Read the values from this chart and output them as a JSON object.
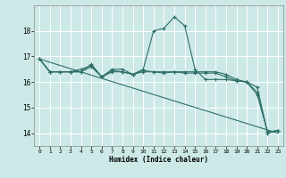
{
  "xlabel": "Humidex (Indice chaleur)",
  "ylabel": "",
  "x_ticks": [
    0,
    1,
    2,
    3,
    4,
    5,
    6,
    7,
    8,
    9,
    10,
    11,
    12,
    13,
    14,
    15,
    16,
    17,
    18,
    19,
    20,
    21,
    22,
    23
  ],
  "ylim": [
    13.5,
    19.0
  ],
  "yticks": [
    14,
    15,
    16,
    17,
    18
  ],
  "background_color": "#cce9e7",
  "grid_color": "#ffffff",
  "line_color": "#2d6e68",
  "line1": {
    "x": [
      0,
      1,
      2,
      3,
      4,
      5,
      6,
      7,
      8,
      9,
      10,
      11,
      12,
      13,
      14,
      15,
      16,
      17,
      18,
      19,
      20,
      21,
      22,
      23
    ],
    "y": [
      16.9,
      16.4,
      16.4,
      16.4,
      16.4,
      16.7,
      16.2,
      16.5,
      16.5,
      16.3,
      16.5,
      18.0,
      18.1,
      18.55,
      18.2,
      16.5,
      16.1,
      16.1,
      16.1,
      16.05,
      16.0,
      15.8,
      14.0,
      14.1
    ]
  },
  "line2": {
    "x": [
      0,
      1,
      2,
      3,
      4,
      5,
      6,
      7,
      8,
      9,
      10,
      11,
      12,
      13,
      14,
      15,
      16,
      17,
      18,
      19,
      20,
      21,
      22,
      23
    ],
    "y": [
      16.9,
      16.4,
      16.4,
      16.4,
      16.5,
      16.65,
      16.2,
      16.45,
      16.4,
      16.3,
      16.45,
      16.4,
      16.4,
      16.4,
      16.4,
      16.4,
      16.4,
      16.4,
      16.3,
      16.1,
      16.0,
      15.6,
      14.05,
      14.1
    ]
  },
  "line3": {
    "x": [
      0,
      1,
      2,
      3,
      4,
      5,
      6,
      7,
      8,
      9,
      10,
      11,
      12,
      13,
      14,
      15,
      16,
      17,
      18,
      19,
      20,
      21,
      22,
      23
    ],
    "y": [
      16.9,
      16.4,
      16.4,
      16.4,
      16.4,
      16.6,
      16.2,
      16.4,
      16.4,
      16.3,
      16.4,
      16.4,
      16.35,
      16.4,
      16.35,
      16.35,
      16.35,
      16.35,
      16.2,
      16.05,
      16.0,
      15.5,
      14.05,
      14.1
    ]
  },
  "line4_straight": {
    "x": [
      0,
      23
    ],
    "y": [
      16.9,
      14.0
    ]
  }
}
